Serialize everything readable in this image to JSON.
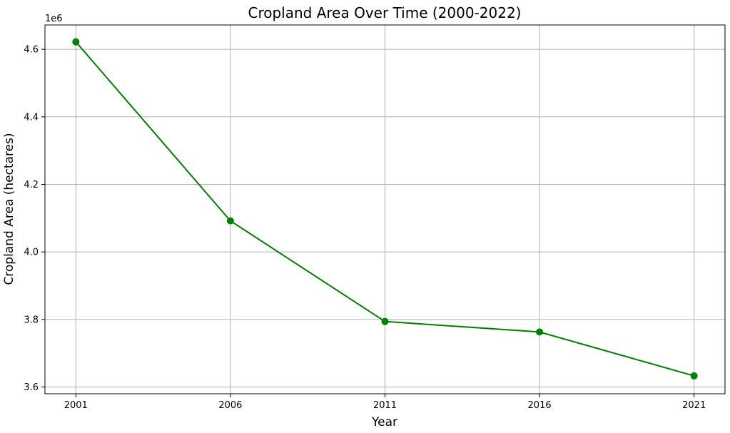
{
  "chart_data": {
    "type": "line",
    "title": "Cropland Area Over Time (2000-2022)",
    "xlabel": "Year",
    "ylabel": "Cropland Area (hectares)",
    "y_offset_label": "1e6",
    "x": [
      2001,
      2006,
      2011,
      2016,
      2021
    ],
    "series": [
      {
        "values": [
          4622000,
          4092000,
          3794000,
          3763000,
          3633000
        ],
        "color": "#008000",
        "marker": "circle"
      }
    ],
    "x_ticks": [
      2001,
      2006,
      2011,
      2016,
      2021
    ],
    "x_tick_labels": [
      "2001",
      "2006",
      "2011",
      "2016",
      "2021"
    ],
    "y_ticks": [
      3600000,
      3800000,
      4000000,
      4200000,
      4400000,
      4600000
    ],
    "y_tick_labels": [
      "3.6",
      "3.8",
      "4.0",
      "4.2",
      "4.4",
      "4.6"
    ],
    "xlim": [
      2000,
      2022
    ],
    "ylim": [
      3580000,
      4672000
    ],
    "grid": true,
    "legend": false
  }
}
